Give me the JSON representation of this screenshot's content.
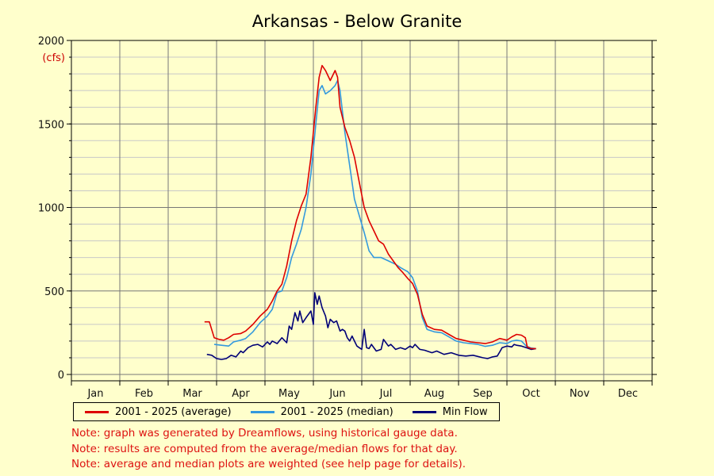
{
  "chart_data": {
    "type": "line",
    "title": "Arkansas - Below Granite",
    "ylabel": "(cfs)",
    "ylim": [
      0,
      2000
    ],
    "y_ticks": [
      0,
      500,
      1000,
      1500,
      2000
    ],
    "months": [
      "Jan",
      "Feb",
      "Mar",
      "Apr",
      "May",
      "Jun",
      "Jul",
      "Aug",
      "Sep",
      "Oct",
      "Nov",
      "Dec"
    ],
    "grid": true,
    "legend_position": "bottom",
    "series": [
      {
        "name": "2001 - 2025 (average)",
        "color": "#dd0000",
        "points": [
          [
            2.75,
            315
          ],
          [
            2.85,
            315
          ],
          [
            2.95,
            220
          ],
          [
            3.05,
            210
          ],
          [
            3.15,
            205
          ],
          [
            3.25,
            220
          ],
          [
            3.35,
            240
          ],
          [
            3.5,
            245
          ],
          [
            3.6,
            260
          ],
          [
            3.75,
            300
          ],
          [
            3.9,
            350
          ],
          [
            4.05,
            390
          ],
          [
            4.15,
            440
          ],
          [
            4.25,
            500
          ],
          [
            4.35,
            540
          ],
          [
            4.45,
            650
          ],
          [
            4.55,
            800
          ],
          [
            4.65,
            920
          ],
          [
            4.75,
            1010
          ],
          [
            4.85,
            1080
          ],
          [
            4.95,
            1300
          ],
          [
            5.05,
            1600
          ],
          [
            5.12,
            1780
          ],
          [
            5.18,
            1850
          ],
          [
            5.25,
            1820
          ],
          [
            5.35,
            1760
          ],
          [
            5.45,
            1820
          ],
          [
            5.5,
            1780
          ],
          [
            5.55,
            1600
          ],
          [
            5.65,
            1480
          ],
          [
            5.75,
            1400
          ],
          [
            5.85,
            1300
          ],
          [
            5.95,
            1150
          ],
          [
            6.05,
            1000
          ],
          [
            6.15,
            920
          ],
          [
            6.25,
            860
          ],
          [
            6.35,
            800
          ],
          [
            6.45,
            780
          ],
          [
            6.55,
            720
          ],
          [
            6.65,
            680
          ],
          [
            6.75,
            640
          ],
          [
            6.85,
            610
          ],
          [
            6.95,
            575
          ],
          [
            7.05,
            545
          ],
          [
            7.15,
            480
          ],
          [
            7.25,
            360
          ],
          [
            7.35,
            290
          ],
          [
            7.5,
            270
          ],
          [
            7.65,
            265
          ],
          [
            7.8,
            240
          ],
          [
            7.95,
            215
          ],
          [
            8.1,
            205
          ],
          [
            8.25,
            195
          ],
          [
            8.4,
            190
          ],
          [
            8.55,
            185
          ],
          [
            8.7,
            195
          ],
          [
            8.85,
            215
          ],
          [
            9.0,
            205
          ],
          [
            9.1,
            225
          ],
          [
            9.2,
            240
          ],
          [
            9.3,
            235
          ],
          [
            9.38,
            220
          ],
          [
            9.42,
            165
          ],
          [
            9.5,
            155
          ],
          [
            9.6,
            155
          ]
        ]
      },
      {
        "name": "2001 - 2025 (median)",
        "color": "#3399dd",
        "points": [
          [
            2.95,
            180
          ],
          [
            3.1,
            175
          ],
          [
            3.25,
            170
          ],
          [
            3.35,
            195
          ],
          [
            3.5,
            205
          ],
          [
            3.6,
            215
          ],
          [
            3.75,
            255
          ],
          [
            3.9,
            310
          ],
          [
            4.05,
            350
          ],
          [
            4.15,
            390
          ],
          [
            4.25,
            490
          ],
          [
            4.35,
            500
          ],
          [
            4.45,
            580
          ],
          [
            4.55,
            700
          ],
          [
            4.65,
            780
          ],
          [
            4.75,
            870
          ],
          [
            4.85,
            1000
          ],
          [
            4.95,
            1200
          ],
          [
            5.05,
            1500
          ],
          [
            5.12,
            1700
          ],
          [
            5.18,
            1730
          ],
          [
            5.25,
            1680
          ],
          [
            5.35,
            1700
          ],
          [
            5.45,
            1730
          ],
          [
            5.5,
            1760
          ],
          [
            5.55,
            1700
          ],
          [
            5.65,
            1450
          ],
          [
            5.75,
            1250
          ],
          [
            5.85,
            1050
          ],
          [
            5.95,
            950
          ],
          [
            6.05,
            850
          ],
          [
            6.15,
            740
          ],
          [
            6.25,
            700
          ],
          [
            6.4,
            700
          ],
          [
            6.55,
            680
          ],
          [
            6.7,
            660
          ],
          [
            6.8,
            640
          ],
          [
            6.95,
            615
          ],
          [
            7.05,
            580
          ],
          [
            7.15,
            500
          ],
          [
            7.25,
            340
          ],
          [
            7.35,
            270
          ],
          [
            7.5,
            255
          ],
          [
            7.65,
            250
          ],
          [
            7.8,
            225
          ],
          [
            7.95,
            200
          ],
          [
            8.1,
            190
          ],
          [
            8.25,
            185
          ],
          [
            8.4,
            180
          ],
          [
            8.55,
            168
          ],
          [
            8.7,
            175
          ],
          [
            8.85,
            190
          ],
          [
            9.0,
            185
          ],
          [
            9.1,
            200
          ],
          [
            9.2,
            205
          ],
          [
            9.3,
            200
          ],
          [
            9.4,
            170
          ],
          [
            9.5,
            158
          ],
          [
            9.6,
            155
          ]
        ]
      },
      {
        "name": "Min Flow",
        "color": "#000077",
        "points": [
          [
            2.8,
            120
          ],
          [
            2.9,
            115
          ],
          [
            3.0,
            95
          ],
          [
            3.1,
            90
          ],
          [
            3.2,
            95
          ],
          [
            3.3,
            115
          ],
          [
            3.4,
            105
          ],
          [
            3.5,
            140
          ],
          [
            3.55,
            130
          ],
          [
            3.65,
            160
          ],
          [
            3.75,
            175
          ],
          [
            3.85,
            180
          ],
          [
            3.95,
            165
          ],
          [
            4.05,
            195
          ],
          [
            4.1,
            180
          ],
          [
            4.15,
            200
          ],
          [
            4.25,
            185
          ],
          [
            4.35,
            220
          ],
          [
            4.45,
            190
          ],
          [
            4.5,
            290
          ],
          [
            4.55,
            270
          ],
          [
            4.62,
            370
          ],
          [
            4.68,
            320
          ],
          [
            4.72,
            380
          ],
          [
            4.78,
            310
          ],
          [
            4.85,
            340
          ],
          [
            4.95,
            380
          ],
          [
            5.0,
            300
          ],
          [
            5.03,
            490
          ],
          [
            5.08,
            420
          ],
          [
            5.12,
            470
          ],
          [
            5.18,
            400
          ],
          [
            5.25,
            350
          ],
          [
            5.3,
            280
          ],
          [
            5.35,
            330
          ],
          [
            5.42,
            310
          ],
          [
            5.48,
            320
          ],
          [
            5.55,
            260
          ],
          [
            5.6,
            270
          ],
          [
            5.65,
            260
          ],
          [
            5.7,
            220
          ],
          [
            5.75,
            200
          ],
          [
            5.8,
            230
          ],
          [
            5.85,
            200
          ],
          [
            5.9,
            170
          ],
          [
            5.95,
            160
          ],
          [
            6.0,
            150
          ],
          [
            6.05,
            270
          ],
          [
            6.1,
            160
          ],
          [
            6.15,
            155
          ],
          [
            6.2,
            180
          ],
          [
            6.3,
            140
          ],
          [
            6.4,
            150
          ],
          [
            6.45,
            210
          ],
          [
            6.5,
            190
          ],
          [
            6.55,
            170
          ],
          [
            6.6,
            180
          ],
          [
            6.7,
            150
          ],
          [
            6.8,
            160
          ],
          [
            6.9,
            150
          ],
          [
            7.0,
            170
          ],
          [
            7.05,
            160
          ],
          [
            7.1,
            180
          ],
          [
            7.2,
            150
          ],
          [
            7.3,
            145
          ],
          [
            7.45,
            130
          ],
          [
            7.55,
            140
          ],
          [
            7.7,
            120
          ],
          [
            7.85,
            130
          ],
          [
            8.0,
            115
          ],
          [
            8.15,
            110
          ],
          [
            8.3,
            115
          ],
          [
            8.5,
            100
          ],
          [
            8.6,
            95
          ],
          [
            8.7,
            105
          ],
          [
            8.8,
            110
          ],
          [
            8.85,
            135
          ],
          [
            8.9,
            160
          ],
          [
            9.0,
            170
          ],
          [
            9.1,
            165
          ],
          [
            9.15,
            180
          ],
          [
            9.2,
            175
          ],
          [
            9.3,
            170
          ],
          [
            9.4,
            160
          ],
          [
            9.5,
            150
          ],
          [
            9.6,
            155
          ]
        ]
      }
    ]
  },
  "notes": [
    "Note: graph was generated by Dreamflows, using historical gauge data.",
    "Note: results are computed from the average/median flows for that day.",
    "Note: average and median plots are weighted (see help page for details)."
  ]
}
